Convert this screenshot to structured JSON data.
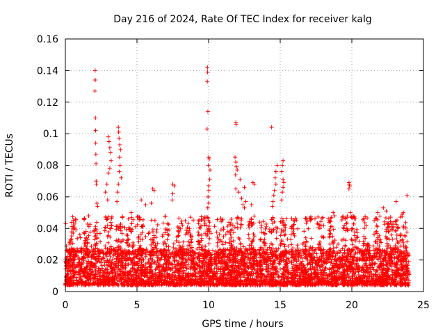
{
  "chart_data": {
    "type": "scatter",
    "title": "Day 216 of 2024, Rate Of TEC Index for receiver kalg",
    "xlabel": "GPS time / hours",
    "ylabel": "ROTI / TECUs",
    "xlim": [
      0,
      25
    ],
    "ylim": [
      0,
      0.16
    ],
    "xticks": [
      0,
      5,
      10,
      15,
      20,
      25
    ],
    "xtick_labels": [
      "0",
      "5",
      "10",
      "15",
      "20",
      "25"
    ],
    "yticks": [
      0,
      0.02,
      0.04,
      0.06,
      0.08,
      0.1,
      0.12,
      0.14,
      0.16
    ],
    "ytick_labels": [
      "0",
      "0.02",
      "0.04",
      "0.06",
      "0.08",
      "0.1",
      "0.12",
      "0.14",
      "0.16"
    ],
    "grid": true,
    "marker": "plus",
    "color": "#ff0000",
    "data_span_hours": [
      0,
      24
    ],
    "background_band": [
      0.004,
      0.025
    ],
    "series": [
      {
        "name": "ROTI",
        "points": [
          [
            2.08,
            0.14
          ],
          [
            2.09,
            0.134
          ],
          [
            2.07,
            0.127
          ],
          [
            2.1,
            0.11
          ],
          [
            2.11,
            0.102
          ],
          [
            2.12,
            0.094
          ],
          [
            2.13,
            0.087
          ],
          [
            2.14,
            0.081
          ],
          [
            2.15,
            0.07
          ],
          [
            2.16,
            0.068
          ],
          [
            2.2,
            0.056
          ],
          [
            2.25,
            0.054
          ],
          [
            3.0,
            0.098
          ],
          [
            3.05,
            0.095
          ],
          [
            3.1,
            0.091
          ],
          [
            3.15,
            0.088
          ],
          [
            3.2,
            0.083
          ],
          [
            3.1,
            0.078
          ],
          [
            3.0,
            0.075
          ],
          [
            2.9,
            0.068
          ],
          [
            2.8,
            0.063
          ],
          [
            2.95,
            0.058
          ],
          [
            3.7,
            0.104
          ],
          [
            3.72,
            0.101
          ],
          [
            3.75,
            0.097
          ],
          [
            3.8,
            0.093
          ],
          [
            3.85,
            0.09
          ],
          [
            3.78,
            0.085
          ],
          [
            3.82,
            0.08
          ],
          [
            3.76,
            0.076
          ],
          [
            3.9,
            0.072
          ],
          [
            3.7,
            0.068
          ],
          [
            3.65,
            0.063
          ],
          [
            3.6,
            0.057
          ],
          [
            4.4,
            0.046
          ],
          [
            4.6,
            0.05
          ],
          [
            5.3,
            0.058
          ],
          [
            5.6,
            0.055
          ],
          [
            6.0,
            0.056
          ],
          [
            6.1,
            0.065
          ],
          [
            6.2,
            0.064
          ],
          [
            7.5,
            0.068
          ],
          [
            7.6,
            0.067
          ],
          [
            7.5,
            0.062
          ],
          [
            7.45,
            0.058
          ],
          [
            9.92,
            0.142
          ],
          [
            9.93,
            0.139
          ],
          [
            9.91,
            0.133
          ],
          [
            9.95,
            0.114
          ],
          [
            9.9,
            0.103
          ],
          [
            10.0,
            0.085
          ],
          [
            10.05,
            0.084
          ],
          [
            9.98,
            0.08
          ],
          [
            10.1,
            0.077
          ],
          [
            10.08,
            0.071
          ],
          [
            10.0,
            0.067
          ],
          [
            10.02,
            0.064
          ],
          [
            9.96,
            0.06
          ],
          [
            10.0,
            0.056
          ],
          [
            9.94,
            0.053
          ],
          [
            11.9,
            0.107
          ],
          [
            11.92,
            0.106
          ],
          [
            11.85,
            0.085
          ],
          [
            11.9,
            0.082
          ],
          [
            11.95,
            0.079
          ],
          [
            12.0,
            0.077
          ],
          [
            11.88,
            0.074
          ],
          [
            12.2,
            0.071
          ],
          [
            11.9,
            0.065
          ],
          [
            12.1,
            0.063
          ],
          [
            12.3,
            0.059
          ],
          [
            12.4,
            0.055
          ],
          [
            12.5,
            0.053
          ],
          [
            12.6,
            0.057
          ],
          [
            12.5,
            0.066
          ],
          [
            13.1,
            0.069
          ],
          [
            13.2,
            0.068
          ],
          [
            13.0,
            0.055
          ],
          [
            14.4,
            0.104
          ],
          [
            14.8,
            0.08
          ],
          [
            14.7,
            0.076
          ],
          [
            14.65,
            0.072
          ],
          [
            14.7,
            0.068
          ],
          [
            14.6,
            0.064
          ],
          [
            14.55,
            0.061
          ],
          [
            14.5,
            0.057
          ],
          [
            14.45,
            0.054
          ],
          [
            15.2,
            0.083
          ],
          [
            15.15,
            0.08
          ],
          [
            15.1,
            0.076
          ],
          [
            15.2,
            0.071
          ],
          [
            15.25,
            0.069
          ],
          [
            15.2,
            0.066
          ],
          [
            15.15,
            0.063
          ],
          [
            15.1,
            0.058
          ],
          [
            17.1,
            0.045
          ],
          [
            18.7,
            0.05
          ],
          [
            18.8,
            0.048
          ],
          [
            19.8,
            0.069
          ],
          [
            19.82,
            0.068
          ],
          [
            19.85,
            0.067
          ],
          [
            19.8,
            0.065
          ],
          [
            19.9,
            0.05
          ],
          [
            20.2,
            0.046
          ],
          [
            21.8,
            0.05
          ],
          [
            22.2,
            0.053
          ],
          [
            22.4,
            0.051
          ],
          [
            23.1,
            0.057
          ],
          [
            23.5,
            0.049
          ],
          [
            23.6,
            0.05
          ],
          [
            23.85,
            0.061
          ]
        ]
      }
    ]
  }
}
